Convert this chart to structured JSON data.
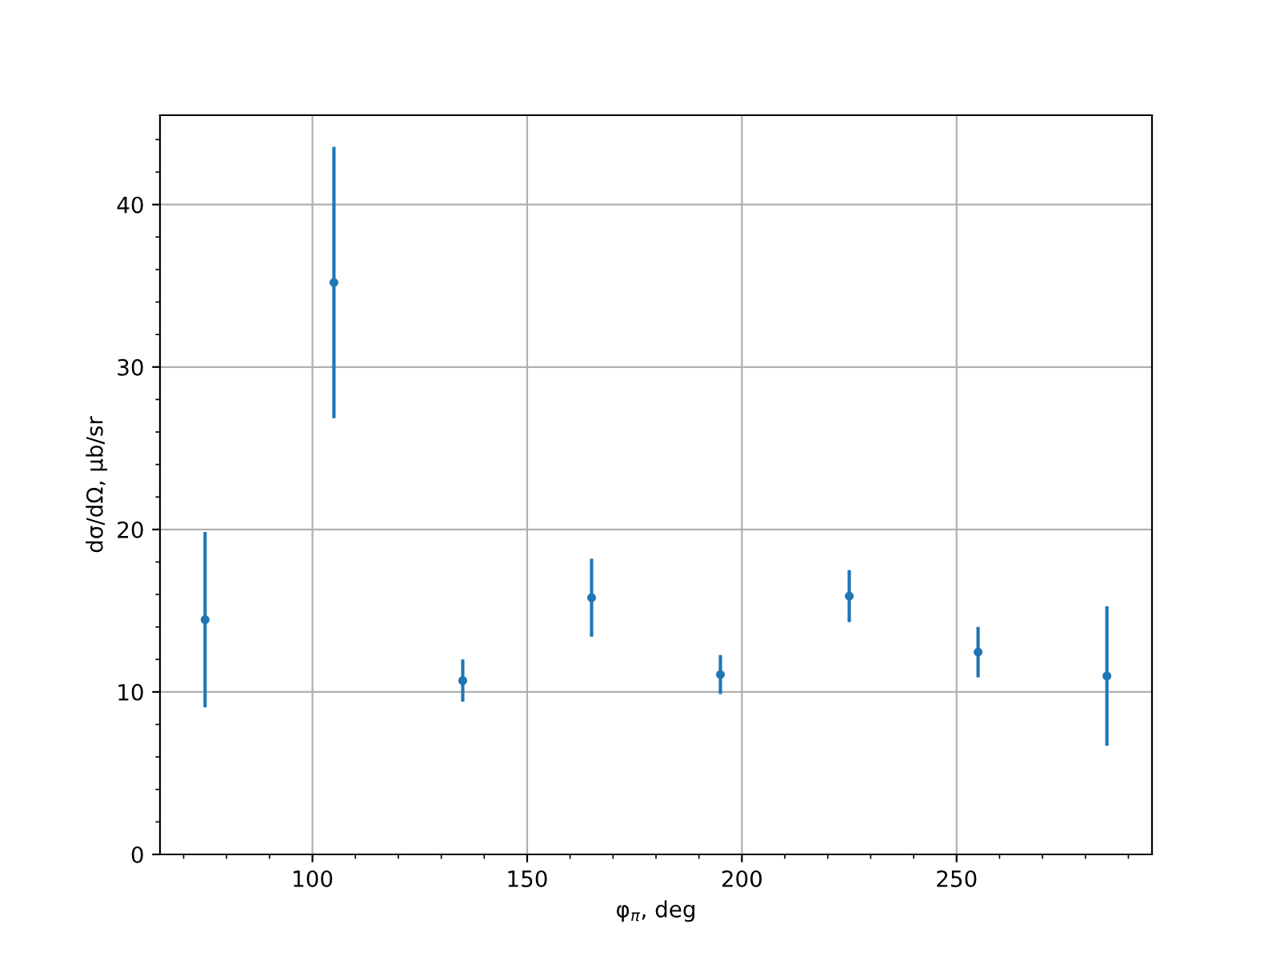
{
  "chart_data": {
    "type": "scatter",
    "xlabel": "φ$_{π}$, deg",
    "ylabel": "dσ/dΩ, μb/sr",
    "x": [
      75,
      105,
      135,
      165,
      195,
      225,
      255,
      285
    ],
    "series": [
      {
        "color": "#1f77b4",
        "values": [
          14.45,
          35.2,
          10.7,
          15.8,
          11.07,
          15.9,
          12.45,
          10.98
        ],
        "errors": [
          5.4,
          8.35,
          1.3,
          2.4,
          1.2,
          1.6,
          1.55,
          4.3
        ]
      }
    ],
    "xlim": [
      64.5,
      295.5
    ],
    "ylim": [
      0,
      45.5
    ],
    "xticks": [
      {
        "value": 70,
        "label": null
      },
      {
        "value": 80,
        "label": null
      },
      {
        "value": 90,
        "label": null
      },
      100,
      {
        "value": 110,
        "label": null
      },
      {
        "value": 120,
        "label": null
      },
      {
        "value": 130,
        "label": null
      },
      {
        "value": 140,
        "label": null
      },
      150,
      {
        "value": 160,
        "label": null
      },
      {
        "value": 170,
        "label": null
      },
      {
        "value": 180,
        "label": null
      },
      {
        "value": 190,
        "label": null
      },
      200,
      {
        "value": 210,
        "label": null
      },
      {
        "value": 220,
        "label": null
      },
      {
        "value": 230,
        "label": null
      },
      {
        "value": 240,
        "label": null
      },
      250,
      {
        "value": 260,
        "label": null
      },
      {
        "value": 270,
        "label": null
      },
      {
        "value": 280,
        "label": null
      },
      {
        "value": 290,
        "label": null
      }
    ],
    "yticks": [
      0,
      {
        "value": 2,
        "label": null
      },
      {
        "value": 4,
        "label": null
      },
      {
        "value": 6,
        "label": null
      },
      {
        "value": 8,
        "label": null
      },
      10,
      {
        "value": 12,
        "label": null
      },
      {
        "value": 14,
        "label": null
      },
      {
        "value": 16,
        "label": null
      },
      {
        "value": 18,
        "label": null
      },
      20,
      {
        "value": 22,
        "label": null
      },
      {
        "value": 24,
        "label": null
      },
      {
        "value": 26,
        "label": null
      },
      {
        "value": 28,
        "label": null
      },
      30,
      {
        "value": 32,
        "label": null
      },
      {
        "value": 34,
        "label": null
      },
      {
        "value": 36,
        "label": null
      },
      {
        "value": 38,
        "label": null
      },
      40,
      {
        "value": 42,
        "label": null
      },
      {
        "value": 44,
        "label": null
      }
    ],
    "grid": true,
    "marker": "circle"
  }
}
